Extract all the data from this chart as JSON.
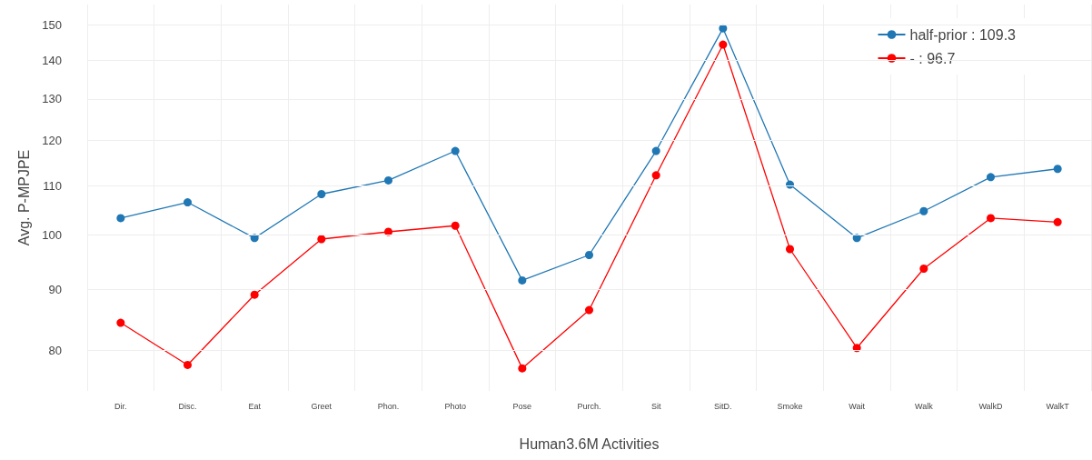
{
  "chart_data": {
    "type": "line",
    "xlabel": "Human3.6M Activities",
    "ylabel": "Avg. P-MPJPE",
    "categories": [
      "Dir.",
      "Disc.",
      "Eat",
      "Greet",
      "Phon.",
      "Photo",
      "Pose",
      "Purch.",
      "Sit",
      "SitD.",
      "Smoke",
      "Wait",
      "Walk",
      "WalkD",
      "WalkT"
    ],
    "series": [
      {
        "name": "half-prior : 109.3",
        "color": "#1f77b4",
        "values": [
          103.3,
          106.5,
          99.4,
          108.2,
          111.1,
          117.6,
          91.6,
          96.2,
          117.6,
          149,
          110.2,
          99.4,
          104.7,
          111.8,
          113.6
        ]
      },
      {
        "name": "- : 96.7",
        "color": "#ff0000",
        "values": [
          84.4,
          77.8,
          89.1,
          99.2,
          100.6,
          101.8,
          77.3,
          86.5,
          112.2,
          144.4,
          97.3,
          80.4,
          93.7,
          103.3,
          102.5
        ]
      }
    ],
    "log": "y",
    "ylim": [
      74,
      156
    ],
    "yticks": [
      80,
      90,
      100,
      110,
      120,
      130,
      140,
      150
    ],
    "grid": true,
    "legend": "top right",
    "marker": "circle",
    "line_style": "solid"
  }
}
